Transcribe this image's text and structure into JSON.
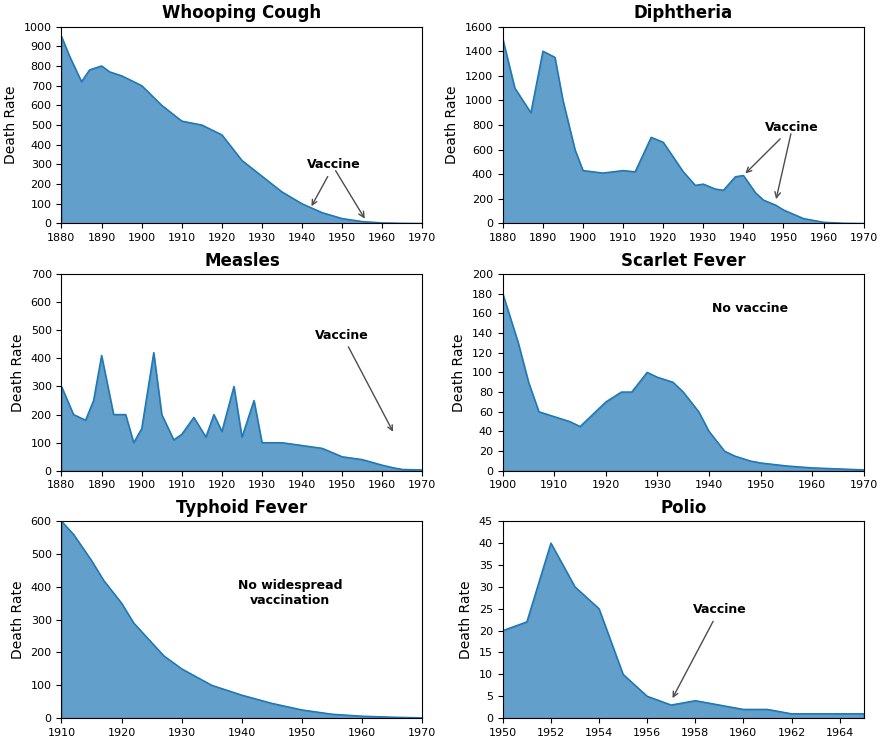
{
  "chart_data": [
    {
      "type": "area",
      "title": "Whooping Cough",
      "y_label": "Death Rate",
      "x": [
        1880,
        1882,
        1885,
        1887,
        1890,
        1892,
        1895,
        1897,
        1900,
        1905,
        1910,
        1915,
        1920,
        1925,
        1930,
        1935,
        1940,
        1945,
        1950,
        1955,
        1960,
        1965,
        1970
      ],
      "values": [
        950,
        850,
        720,
        780,
        800,
        770,
        750,
        730,
        700,
        600,
        520,
        500,
        450,
        320,
        240,
        160,
        100,
        55,
        25,
        10,
        3,
        1,
        0
      ],
      "xlim": [
        1880,
        1970
      ],
      "ylim": [
        0,
        1000
      ],
      "xticks": [
        1880,
        1890,
        1900,
        1910,
        1920,
        1930,
        1940,
        1950,
        1960,
        1970
      ],
      "yticks": [
        0,
        100,
        200,
        300,
        400,
        500,
        600,
        700,
        800,
        900,
        1000
      ],
      "annotations": [
        {
          "text": "Vaccine",
          "x": 1948,
          "y": 280,
          "arrow_to": [
            [
              1942,
              75
            ],
            [
              1956,
              12
            ]
          ]
        }
      ]
    },
    {
      "type": "area",
      "title": "Diphtheria",
      "y_label": "Death Rate",
      "x": [
        1880,
        1883,
        1887,
        1890,
        1893,
        1895,
        1898,
        1900,
        1905,
        1910,
        1913,
        1917,
        1920,
        1925,
        1928,
        1930,
        1933,
        1935,
        1938,
        1940,
        1943,
        1945,
        1948,
        1950,
        1955,
        1960,
        1965,
        1970
      ],
      "values": [
        1500,
        1100,
        900,
        1400,
        1350,
        1000,
        600,
        430,
        410,
        430,
        420,
        700,
        660,
        420,
        310,
        320,
        280,
        270,
        380,
        390,
        250,
        190,
        150,
        110,
        40,
        10,
        2,
        0
      ],
      "xlim": [
        1880,
        1970
      ],
      "ylim": [
        0,
        1600
      ],
      "xticks": [
        1880,
        1890,
        1900,
        1910,
        1920,
        1930,
        1940,
        1950,
        1960,
        1970
      ],
      "yticks": [
        0,
        200,
        400,
        600,
        800,
        1000,
        1200,
        1400,
        1600
      ],
      "annotations": [
        {
          "text": "Vaccine",
          "x": 1952,
          "y": 750,
          "arrow_to": [
            [
              1940,
              390
            ],
            [
              1948,
              175
            ]
          ]
        }
      ]
    },
    {
      "type": "area",
      "title": "Measles",
      "y_label": "Death Rate",
      "x": [
        1880,
        1883,
        1886,
        1888,
        1890,
        1893,
        1896,
        1898,
        1900,
        1903,
        1905,
        1908,
        1910,
        1913,
        1916,
        1918,
        1920,
        1923,
        1925,
        1928,
        1930,
        1935,
        1940,
        1945,
        1950,
        1955,
        1960,
        1963,
        1965,
        1970
      ],
      "values": [
        300,
        200,
        180,
        250,
        410,
        200,
        200,
        100,
        150,
        420,
        200,
        110,
        130,
        190,
        120,
        200,
        140,
        300,
        120,
        250,
        100,
        100,
        90,
        80,
        50,
        40,
        20,
        10,
        5,
        3
      ],
      "xlim": [
        1880,
        1970
      ],
      "ylim": [
        0,
        700
      ],
      "xticks": [
        1880,
        1890,
        1900,
        1910,
        1920,
        1930,
        1940,
        1950,
        1960,
        1970
      ],
      "yticks": [
        0,
        100,
        200,
        300,
        400,
        500,
        600,
        700
      ],
      "annotations": [
        {
          "text": "Vaccine",
          "x": 1950,
          "y": 470,
          "arrow_to": [
            [
              1963,
              130
            ]
          ]
        }
      ]
    },
    {
      "type": "area",
      "title": "Scarlet Fever",
      "y_label": "Death Rate",
      "x": [
        1900,
        1903,
        1905,
        1907,
        1910,
        1913,
        1915,
        1918,
        1920,
        1923,
        1925,
        1928,
        1930,
        1933,
        1935,
        1938,
        1940,
        1943,
        1945,
        1948,
        1950,
        1955,
        1960,
        1965,
        1970
      ],
      "values": [
        180,
        130,
        90,
        60,
        55,
        50,
        45,
        60,
        70,
        80,
        80,
        100,
        95,
        90,
        80,
        60,
        40,
        20,
        15,
        10,
        8,
        5,
        3,
        2,
        1
      ],
      "xlim": [
        1900,
        1970
      ],
      "ylim": [
        0,
        200
      ],
      "xticks": [
        1900,
        1910,
        1920,
        1930,
        1940,
        1950,
        1960,
        1970
      ],
      "yticks": [
        0,
        20,
        40,
        60,
        80,
        100,
        120,
        140,
        160,
        180,
        200
      ],
      "annotations": [
        {
          "text": "No vaccine",
          "x": 1948,
          "y": 165,
          "arrow_to": []
        }
      ]
    },
    {
      "type": "area",
      "title": "Typhoid Fever",
      "y_label": "Death Rate",
      "x": [
        1910,
        1912,
        1915,
        1917,
        1920,
        1922,
        1925,
        1927,
        1930,
        1935,
        1940,
        1945,
        1950,
        1955,
        1960,
        1965,
        1970
      ],
      "values": [
        600,
        560,
        480,
        420,
        350,
        290,
        230,
        190,
        150,
        100,
        70,
        45,
        25,
        12,
        6,
        3,
        1
      ],
      "xlim": [
        1910,
        1970
      ],
      "ylim": [
        0,
        600
      ],
      "xticks": [
        1910,
        1920,
        1930,
        1940,
        1950,
        1960,
        1970
      ],
      "yticks": [
        0,
        100,
        200,
        300,
        400,
        500,
        600
      ],
      "annotations": [
        {
          "text": "No widespread\nvaccination",
          "x": 1948,
          "y": 380,
          "arrow_to": []
        }
      ]
    },
    {
      "type": "area",
      "title": "Polio",
      "y_label": "Death Rate",
      "x": [
        1950,
        1951,
        1952,
        1953,
        1954,
        1955,
        1956,
        1957,
        1958,
        1959,
        1960,
        1961,
        1962,
        1963,
        1964,
        1965
      ],
      "values": [
        20,
        22,
        40,
        30,
        25,
        10,
        5,
        3,
        4,
        3,
        2,
        2,
        1,
        1,
        1,
        1
      ],
      "xlim": [
        1950,
        1965
      ],
      "ylim": [
        0,
        45
      ],
      "xticks": [
        1950,
        1952,
        1954,
        1956,
        1958,
        1960,
        1962,
        1964
      ],
      "yticks": [
        0,
        5,
        10,
        15,
        20,
        25,
        30,
        35,
        40,
        45
      ],
      "annotations": [
        {
          "text": "Vaccine",
          "x": 1959,
          "y": 24,
          "arrow_to": [
            [
              1957,
              4
            ]
          ]
        }
      ]
    }
  ]
}
